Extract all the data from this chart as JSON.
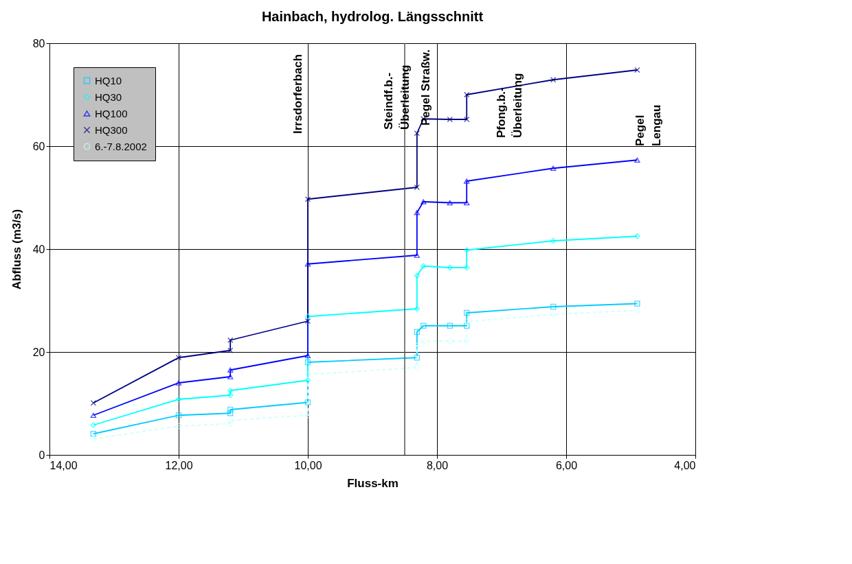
{
  "chart_data": {
    "type": "line",
    "title": "Hainbach, hydrolog. Längsschnitt",
    "xlabel": "Fluss-km",
    "ylabel": "Abfluss (m3/s)",
    "xlim": [
      14,
      4
    ],
    "xticks": [
      {
        "value": 14,
        "label": "14,00"
      },
      {
        "value": 12,
        "label": "12,00"
      },
      {
        "value": 10,
        "label": "10,00"
      },
      {
        "value": 8,
        "label": "8,00"
      },
      {
        "value": 6,
        "label": "6,00"
      },
      {
        "value": 4,
        "label": "4,00"
      }
    ],
    "ylim": [
      0,
      80
    ],
    "yticks": [
      0,
      20,
      40,
      60,
      80
    ],
    "grid": true,
    "legend": "top left",
    "x": [
      13.32,
      12.0,
      11.2,
      11.2,
      10.0,
      10.0,
      8.31,
      8.31,
      8.21,
      7.8,
      7.54,
      7.54,
      6.2,
      4.9
    ],
    "series": [
      {
        "name": "HQ10",
        "color": "#00ccff",
        "marker": "square",
        "line_style": "solid",
        "values": [
          4.1,
          7.7,
          8.1,
          8.8,
          10.2,
          18.0,
          18.9,
          23.9,
          25.1,
          25.1,
          25.1,
          27.6,
          28.8,
          29.4
        ]
      },
      {
        "name": "HQ30",
        "color": "#00ffff",
        "marker": "diamond",
        "line_style": "solid",
        "values": [
          5.8,
          10.8,
          11.6,
          12.5,
          14.5,
          26.9,
          28.4,
          34.8,
          36.7,
          36.4,
          36.4,
          39.8,
          41.6,
          42.5
        ]
      },
      {
        "name": "HQ100",
        "color": "#0000ff",
        "marker": "triangle",
        "line_style": "solid",
        "values": [
          7.7,
          14.0,
          15.2,
          16.5,
          19.3,
          37.1,
          38.8,
          47.1,
          49.2,
          49.0,
          49.0,
          53.2,
          55.7,
          57.3
        ]
      },
      {
        "name": "HQ300",
        "color": "#000080",
        "marker": "cross",
        "line_style": "solid",
        "values": [
          10.1,
          18.9,
          20.3,
          22.3,
          26.0,
          49.7,
          52.0,
          62.5,
          65.3,
          65.2,
          65.2,
          70.0,
          72.9,
          74.8
        ]
      },
      {
        "name": "6.-7.8.2002",
        "color": "#ccffff",
        "marker": "circle",
        "line_style": "dashed",
        "values": [
          3.1,
          5.6,
          6.1,
          6.7,
          7.7,
          15.6,
          17.0,
          21.2,
          22.1,
          22.1,
          22.1,
          25.9,
          27.3,
          28.1
        ]
      }
    ],
    "ref_lines": [
      {
        "axis": "x",
        "value": 8.5,
        "color": "#555555"
      }
    ],
    "annotations": [
      "Irrsdorferbach",
      "Steindf.b.-\nÜberleitung",
      "Pegel Straßw.",
      "Pfong.b.-\nÜberleitung",
      "Pegel\nLengau"
    ]
  }
}
